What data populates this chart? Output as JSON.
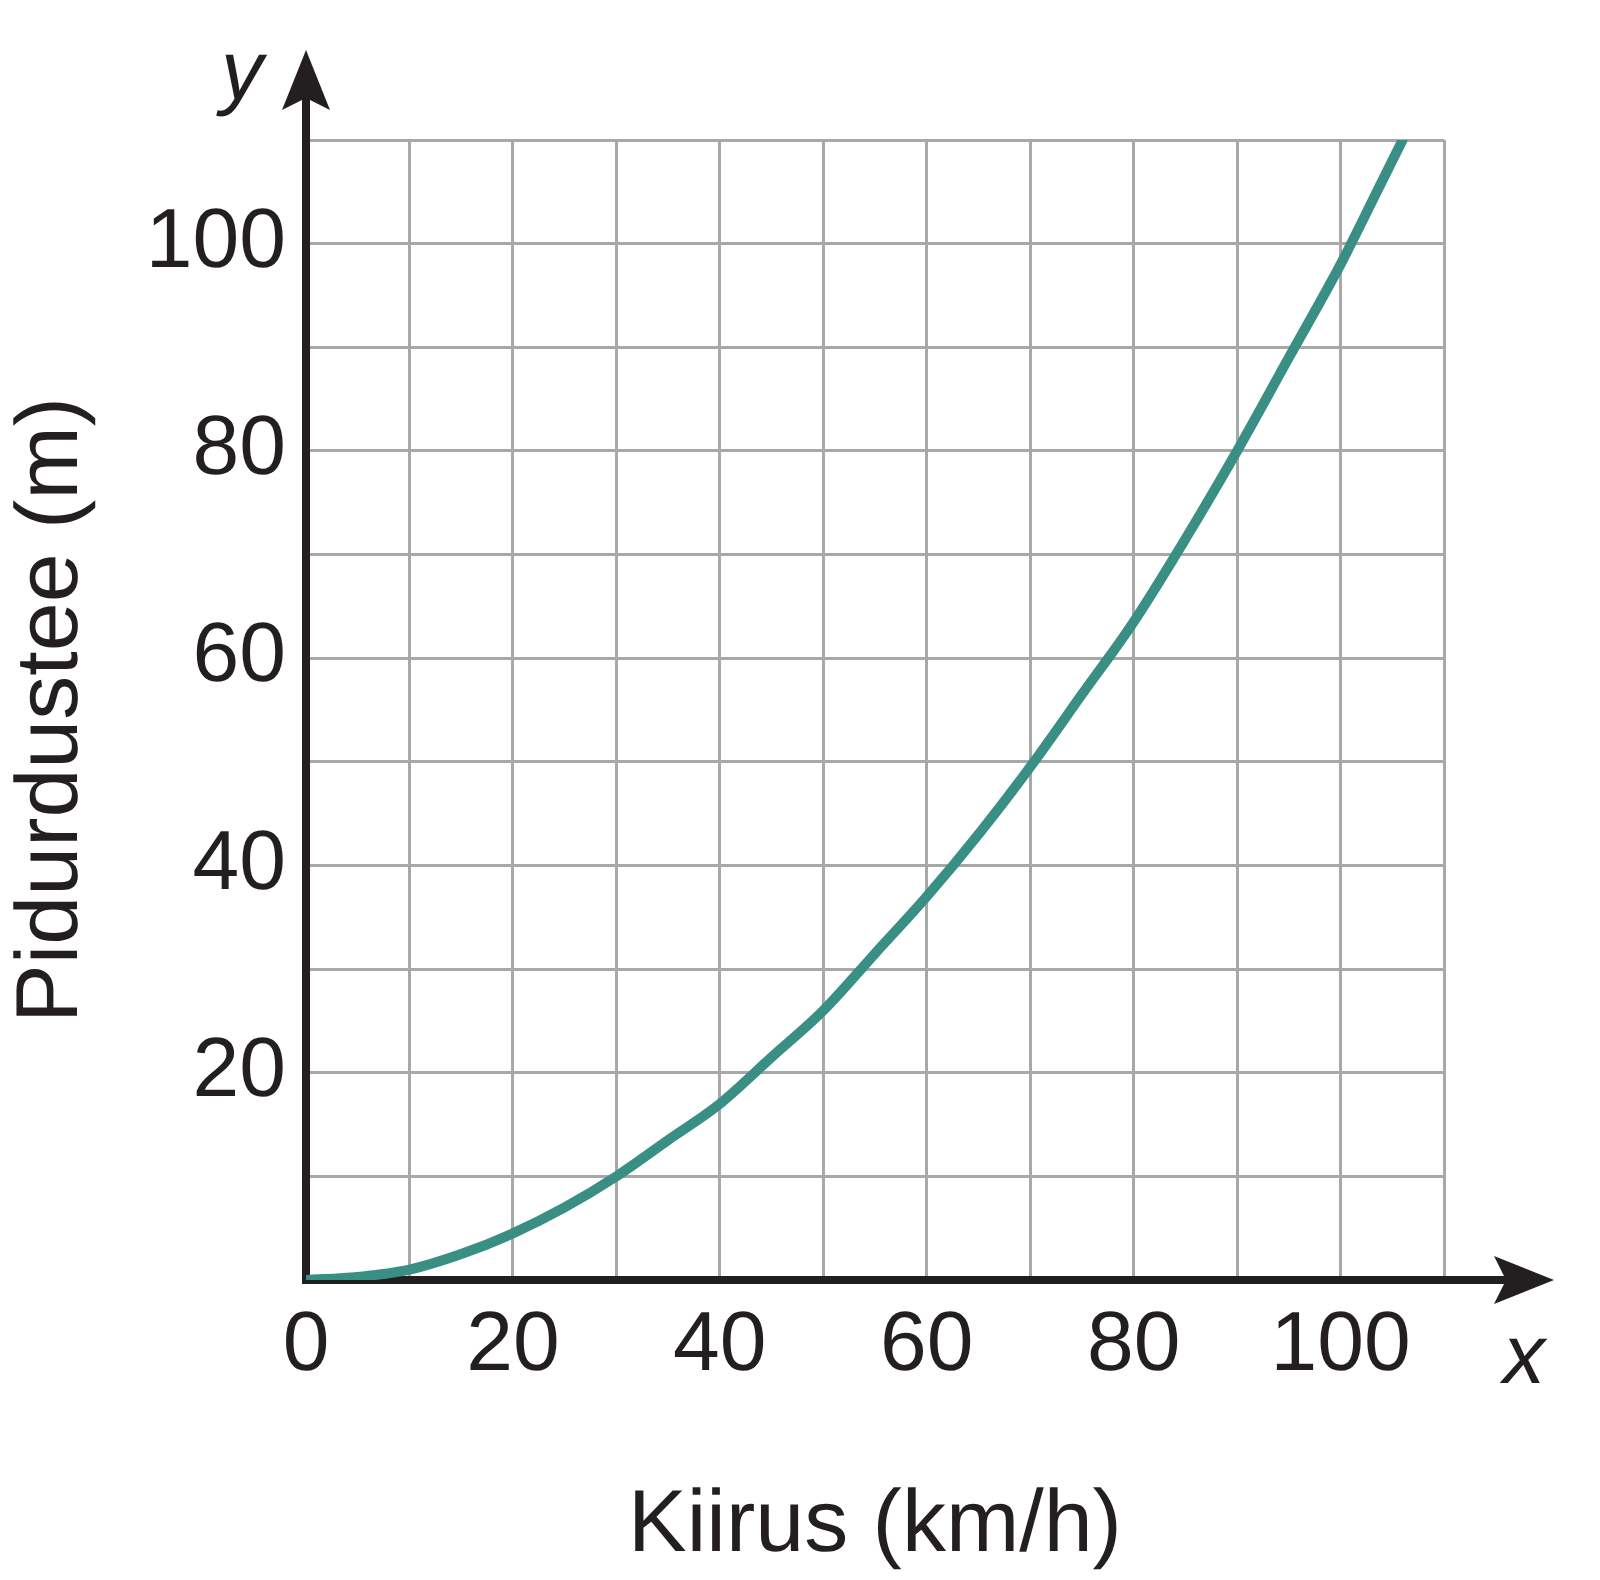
{
  "chart_data": {
    "type": "line",
    "xlabel": "Kiirus (km/h)",
    "ylabel": "Pidurdustee (m)",
    "annotations": [
      "x",
      "y"
    ],
    "x": [
      0,
      5,
      10,
      15,
      20,
      25,
      30,
      35,
      40,
      45,
      50,
      55,
      60,
      65,
      70,
      75,
      80,
      85,
      90,
      95,
      100,
      104,
      106
    ],
    "series": [
      {
        "color": "#3a8f85",
        "values": [
          0,
          0.3,
          1,
          2.5,
          4.5,
          7,
          10,
          13.5,
          17,
          21.5,
          26,
          31.5,
          37,
          43,
          49.5,
          56.5,
          63.5,
          71.5,
          80,
          89,
          98,
          106,
          110
        ]
      }
    ],
    "xlim": [
      0,
      110
    ],
    "ylim": [
      0,
      110
    ],
    "xticks": [
      {
        "value": 0,
        "label": "0"
      },
      {
        "value": 10,
        "label": null
      },
      20,
      {
        "value": 30,
        "label": null
      },
      40,
      {
        "value": 50,
        "label": null
      },
      60,
      {
        "value": 70,
        "label": null
      },
      80,
      {
        "value": 90,
        "label": null
      },
      100,
      {
        "value": 110,
        "label": null
      }
    ],
    "yticks": [
      {
        "value": 0,
        "label": null
      },
      {
        "value": 10,
        "label": null
      },
      20,
      {
        "value": 30,
        "label": null
      },
      40,
      {
        "value": 50,
        "label": null
      },
      60,
      {
        "value": 70,
        "label": null
      },
      80,
      {
        "value": 90,
        "label": null
      },
      100,
      {
        "value": 110,
        "label": null
      }
    ],
    "grid": true,
    "legend": false,
    "marker": "none",
    "line_style": "solid"
  }
}
